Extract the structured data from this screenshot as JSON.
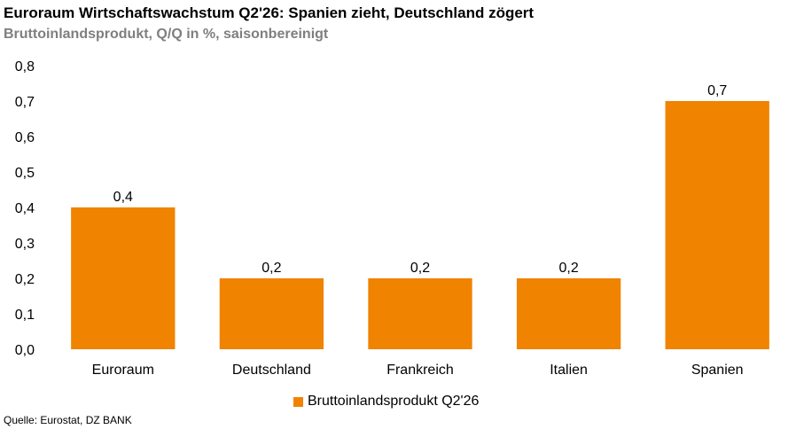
{
  "title": "Euroraum Wirtschaftswachstum Q2'26: Spanien zieht, Deutschland zögert",
  "subtitle": "Bruttoinlandsprodukt, Q/Q in %, saisonbereinigt",
  "source": "Quelle: Eurostat, DZ BANK",
  "colors": {
    "bar": "#f08300"
  },
  "chart_data": {
    "type": "bar",
    "title": "Euroraum Wirtschaftswachstum Q2'26: Spanien zieht, Deutschland zögert",
    "subtitle": "Bruttoinlandsprodukt, Q/Q in %, saisonbereinigt",
    "categories": [
      "Euroraum",
      "Deutschland",
      "Frankreich",
      "Italien",
      "Spanien"
    ],
    "series": [
      {
        "name": "Bruttoinlandsprodukt Q2'26",
        "values": [
          0.4,
          0.2,
          0.2,
          0.2,
          0.7
        ]
      }
    ],
    "data_labels": [
      "0,4",
      "0,2",
      "0,2",
      "0,2",
      "0,7"
    ],
    "ylim": [
      0,
      0.8
    ],
    "yticks": [
      0.0,
      0.1,
      0.2,
      0.3,
      0.4,
      0.5,
      0.6,
      0.7,
      0.8
    ],
    "ytick_labels": [
      "0,0",
      "0,1",
      "0,2",
      "0,3",
      "0,4",
      "0,5",
      "0,6",
      "0,7",
      "0,8"
    ],
    "grid": false,
    "legend": "bottom"
  }
}
